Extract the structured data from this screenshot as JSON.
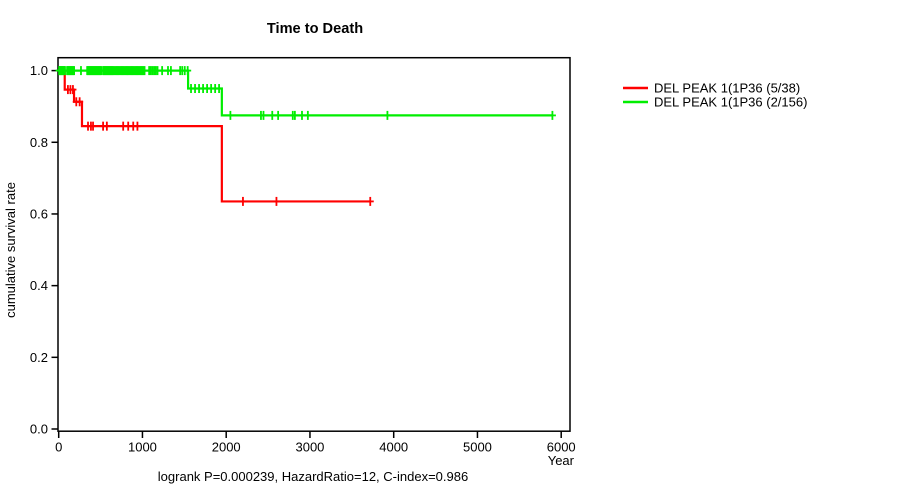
{
  "chart_data": {
    "type": "line",
    "subtype": "kaplan-meier-step",
    "title": "Time to Death",
    "xlabel": "Year",
    "ylabel": "cumulative survival rate",
    "caption": "logrank P=0.000239, HazardRatio=12, C-index=0.986",
    "xlim": [
      0,
      6140
    ],
    "ylim": [
      0,
      1
    ],
    "grid": false,
    "legend_position": "right-outside",
    "x_ticks": [
      0,
      1000,
      2000,
      3000,
      4000,
      5000,
      6000
    ],
    "y_ticks": [
      0,
      0.2,
      0.4,
      0.6,
      0.8,
      1
    ],
    "series": [
      {
        "name": "DEL PEAK  1(1P36 (5/38)",
        "color": "#ff0000",
        "start": [
          0,
          1.0
        ],
        "drops": [
          [
            72,
            0.947
          ],
          [
            183,
            0.913
          ],
          [
            278,
            0.845
          ],
          [
            1948,
            0.635
          ]
        ],
        "end_x": 3720,
        "censors": [
          {
            "y": 0.947,
            "t": [
              110,
              140,
              170
            ]
          },
          {
            "y": 0.913,
            "t": [
              210,
              250
            ]
          },
          {
            "y": 0.845,
            "t": [
              350,
              385,
              410,
              530,
              575,
              770,
              830,
              890,
              940
            ]
          },
          {
            "y": 0.635,
            "t": [
              2200,
              2600,
              3720
            ]
          }
        ]
      },
      {
        "name": "DEL PEAK  1(1P36 (2/156)",
        "color": "#00ee00",
        "start": [
          0,
          1.0
        ],
        "drops": [
          [
            1545,
            0.95
          ],
          [
            1948,
            0.875
          ]
        ],
        "end_x": 5895,
        "censors": [
          {
            "y": 1.0,
            "t": [
              5,
              15,
              25,
              35,
              45,
              55,
              65,
              75,
              100,
              112,
              124,
              136,
              148,
              160,
              172,
              184,
              266,
              340,
              352,
              364,
              376,
              388,
              400,
              412,
              424,
              436,
              448,
              460,
              472,
              484,
              496,
              508,
              530,
              542,
              554,
              566,
              578,
              590,
              602,
              614,
              626,
              638,
              650,
              665,
              680,
              695,
              710,
              725,
              740,
              755,
              770,
              785,
              800,
              815,
              830,
              845,
              860,
              875,
              890,
              905,
              920,
              935,
              950,
              965,
              980,
              995,
              1010,
              1025,
              1080,
              1100,
              1120,
              1140,
              1160,
              1180,
              1235,
              1305,
              1340,
              1450,
              1475,
              1505,
              1540
            ]
          },
          {
            "y": 0.95,
            "t": [
              1580,
              1628,
              1676,
              1724,
              1772,
              1820,
              1868,
              1915
            ]
          },
          {
            "y": 0.875,
            "t": [
              2050,
              2415,
              2445,
              2550,
              2620,
              2795,
              2820,
              2905,
              2975,
              3925,
              5895
            ]
          }
        ]
      }
    ]
  }
}
